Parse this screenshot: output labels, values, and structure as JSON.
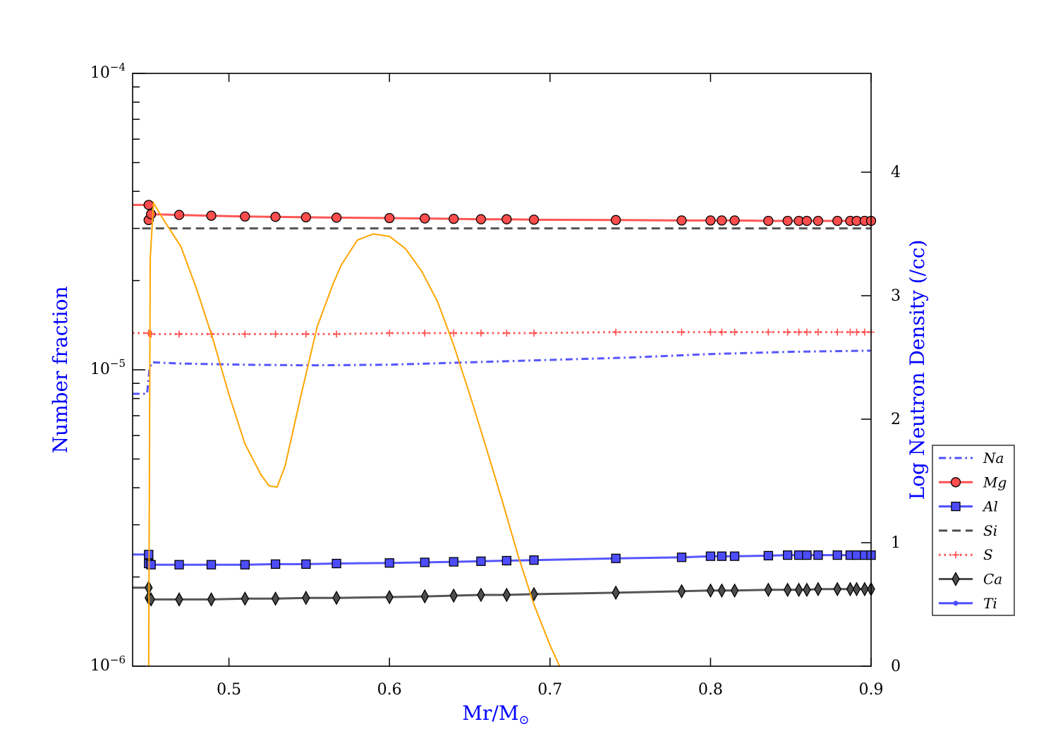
{
  "chart_data": {
    "type": "line",
    "xlabel": "Mr/M",
    "xlabel_symbol": "⊙",
    "ylabel_left": "Number fraction",
    "ylabel_right": "Log Neutron Density (/cc)",
    "xlim": [
      0.44,
      0.9
    ],
    "ylim_left": [
      1e-06,
      0.0001
    ],
    "yscale_left": "log",
    "ylim_right": [
      0,
      4.8
    ],
    "x_ticks": [
      0.5,
      0.6,
      0.7,
      0.8,
      0.9
    ],
    "x_tick_labels": [
      "0.5",
      "0.6",
      "0.7",
      "0.8",
      "0.9"
    ],
    "y_left_tick_labels": [
      {
        "value": 1e-06,
        "base": "10",
        "exp": "−6"
      },
      {
        "value": 1e-05,
        "base": "10",
        "exp": "−5"
      },
      {
        "value": 0.0001,
        "base": "10",
        "exp": "−4"
      }
    ],
    "y_right_ticks": [
      0,
      1,
      2,
      3,
      4
    ],
    "y_right_tick_labels": [
      "0",
      "1",
      "2",
      "3",
      "4"
    ],
    "legend_position": "right",
    "grid": false,
    "mass_coordinates": [
      0.45,
      0.45,
      0.4515,
      0.469,
      0.489,
      0.51,
      0.529,
      0.548,
      0.567,
      0.6,
      0.622,
      0.64,
      0.657,
      0.673,
      0.69,
      0.741,
      0.782,
      0.8,
      0.807,
      0.815,
      0.836,
      0.848,
      0.855,
      0.86,
      0.867,
      0.879,
      0.887,
      0.891,
      0.896
    ],
    "series": [
      {
        "name": "Na",
        "axis": "left",
        "color": "#4d4dff",
        "dash": "dashdot",
        "marker": "none",
        "x": [
          0.44,
          0.449,
          0.4505,
          0.452,
          0.47,
          0.51,
          0.55,
          0.6,
          0.65,
          0.7,
          0.75,
          0.8,
          0.85,
          0.9
        ],
        "y": [
          8.3e-06,
          8.3e-06,
          1e-05,
          1.06e-05,
          1.05e-05,
          1.04e-05,
          1.035e-05,
          1.04e-05,
          1.06e-05,
          1.08e-05,
          1.1e-05,
          1.13e-05,
          1.15e-05,
          1.16e-05
        ]
      },
      {
        "name": "Mg",
        "axis": "left",
        "color": "#ff4d4d",
        "dash": "solid",
        "marker": "circle",
        "x": [
          0.44,
          0.45,
          0.45,
          0.4515,
          0.469,
          0.489,
          0.51,
          0.529,
          0.548,
          0.567,
          0.6,
          0.622,
          0.64,
          0.657,
          0.673,
          0.69,
          0.741,
          0.782,
          0.8,
          0.807,
          0.815,
          0.836,
          0.848,
          0.855,
          0.86,
          0.867,
          0.879,
          0.887,
          0.891,
          0.896,
          0.9
        ],
        "y": [
          3.6e-05,
          3.6e-05,
          3.2e-05,
          3.35e-05,
          3.33e-05,
          3.31e-05,
          3.29e-05,
          3.28e-05,
          3.27e-05,
          3.26e-05,
          3.25e-05,
          3.24e-05,
          3.23e-05,
          3.22e-05,
          3.22e-05,
          3.21e-05,
          3.2e-05,
          3.19e-05,
          3.19e-05,
          3.19e-05,
          3.19e-05,
          3.18e-05,
          3.18e-05,
          3.18e-05,
          3.18e-05,
          3.18e-05,
          3.18e-05,
          3.18e-05,
          3.18e-05,
          3.18e-05,
          3.18e-05
        ]
      },
      {
        "name": "Al",
        "axis": "left",
        "color": "#4d4dff",
        "dash": "solid",
        "marker": "square",
        "x": [
          0.44,
          0.45,
          0.45,
          0.4515,
          0.469,
          0.489,
          0.51,
          0.529,
          0.548,
          0.567,
          0.6,
          0.622,
          0.64,
          0.657,
          0.673,
          0.69,
          0.741,
          0.782,
          0.8,
          0.807,
          0.815,
          0.836,
          0.848,
          0.855,
          0.86,
          0.867,
          0.879,
          0.887,
          0.891,
          0.896,
          0.9
        ],
        "y": [
          2.38e-06,
          2.38e-06,
          2.22e-06,
          2.2e-06,
          2.2e-06,
          2.2e-06,
          2.2e-06,
          2.21e-06,
          2.21e-06,
          2.22e-06,
          2.23e-06,
          2.24e-06,
          2.25e-06,
          2.26e-06,
          2.27e-06,
          2.28e-06,
          2.31e-06,
          2.33e-06,
          2.35e-06,
          2.35e-06,
          2.35e-06,
          2.36e-06,
          2.37e-06,
          2.37e-06,
          2.37e-06,
          2.37e-06,
          2.37e-06,
          2.37e-06,
          2.37e-06,
          2.37e-06,
          2.37e-06
        ]
      },
      {
        "name": "Si",
        "axis": "left",
        "color": "#4d4d4d",
        "dash": "dashed",
        "marker": "none",
        "x": [
          0.446,
          0.9
        ],
        "y": [
          3e-05,
          3e-05
        ]
      },
      {
        "name": "S",
        "axis": "left",
        "color": "#ff4d4d",
        "dash": "dotted",
        "marker": "plus",
        "x": [
          0.44,
          0.45,
          0.45,
          0.4515,
          0.469,
          0.489,
          0.51,
          0.529,
          0.548,
          0.567,
          0.6,
          0.622,
          0.64,
          0.657,
          0.673,
          0.69,
          0.741,
          0.782,
          0.8,
          0.807,
          0.815,
          0.836,
          0.848,
          0.855,
          0.86,
          0.867,
          0.879,
          0.887,
          0.891,
          0.896,
          0.9
        ],
        "y": [
          1.33e-05,
          1.33e-05,
          1.33e-05,
          1.32e-05,
          1.32e-05,
          1.32e-05,
          1.32e-05,
          1.32e-05,
          1.32e-05,
          1.32e-05,
          1.33e-05,
          1.33e-05,
          1.33e-05,
          1.33e-05,
          1.33e-05,
          1.33e-05,
          1.34e-05,
          1.34e-05,
          1.34e-05,
          1.34e-05,
          1.34e-05,
          1.34e-05,
          1.34e-05,
          1.34e-05,
          1.34e-05,
          1.34e-05,
          1.34e-05,
          1.34e-05,
          1.34e-05,
          1.34e-05,
          1.34e-05
        ]
      },
      {
        "name": "Ca",
        "axis": "left",
        "color": "#4d4d4d",
        "dash": "solid",
        "marker": "diamond",
        "x": [
          0.44,
          0.45,
          0.45,
          0.4515,
          0.469,
          0.489,
          0.51,
          0.529,
          0.548,
          0.567,
          0.6,
          0.622,
          0.64,
          0.657,
          0.673,
          0.69,
          0.741,
          0.782,
          0.8,
          0.807,
          0.815,
          0.836,
          0.848,
          0.855,
          0.86,
          0.867,
          0.879,
          0.887,
          0.891,
          0.896,
          0.9
        ],
        "y": [
          1.84e-06,
          1.84e-06,
          1.7e-06,
          1.68e-06,
          1.68e-06,
          1.68e-06,
          1.69e-06,
          1.69e-06,
          1.7e-06,
          1.7e-06,
          1.71e-06,
          1.72e-06,
          1.73e-06,
          1.74e-06,
          1.74e-06,
          1.75e-06,
          1.77e-06,
          1.79e-06,
          1.8e-06,
          1.8e-06,
          1.8e-06,
          1.81e-06,
          1.81e-06,
          1.81e-06,
          1.81e-06,
          1.82e-06,
          1.82e-06,
          1.82e-06,
          1.82e-06,
          1.82e-06,
          1.82e-06
        ]
      },
      {
        "name": "Ti",
        "axis": "left",
        "color": "#4d4dff",
        "dash": "solid",
        "marker": "dot",
        "x": [],
        "y": []
      },
      {
        "name": "",
        "axis": "right",
        "color": "#ffa500",
        "dash": "solid",
        "marker": "none",
        "x": [
          0.45,
          0.451,
          0.453,
          0.46,
          0.47,
          0.48,
          0.49,
          0.5,
          0.51,
          0.52,
          0.525,
          0.53,
          0.535,
          0.545,
          0.555,
          0.565,
          0.57,
          0.58,
          0.59,
          0.6,
          0.61,
          0.62,
          0.63,
          0.64,
          0.65,
          0.66,
          0.67,
          0.68,
          0.69,
          0.7,
          0.706
        ],
        "y": [
          0,
          3.3,
          3.75,
          3.6,
          3.4,
          3.05,
          2.65,
          2.2,
          1.8,
          1.55,
          1.46,
          1.45,
          1.62,
          2.2,
          2.75,
          3.1,
          3.25,
          3.45,
          3.5,
          3.48,
          3.38,
          3.2,
          2.95,
          2.6,
          2.2,
          1.78,
          1.35,
          0.9,
          0.5,
          0.17,
          0
        ]
      }
    ]
  }
}
